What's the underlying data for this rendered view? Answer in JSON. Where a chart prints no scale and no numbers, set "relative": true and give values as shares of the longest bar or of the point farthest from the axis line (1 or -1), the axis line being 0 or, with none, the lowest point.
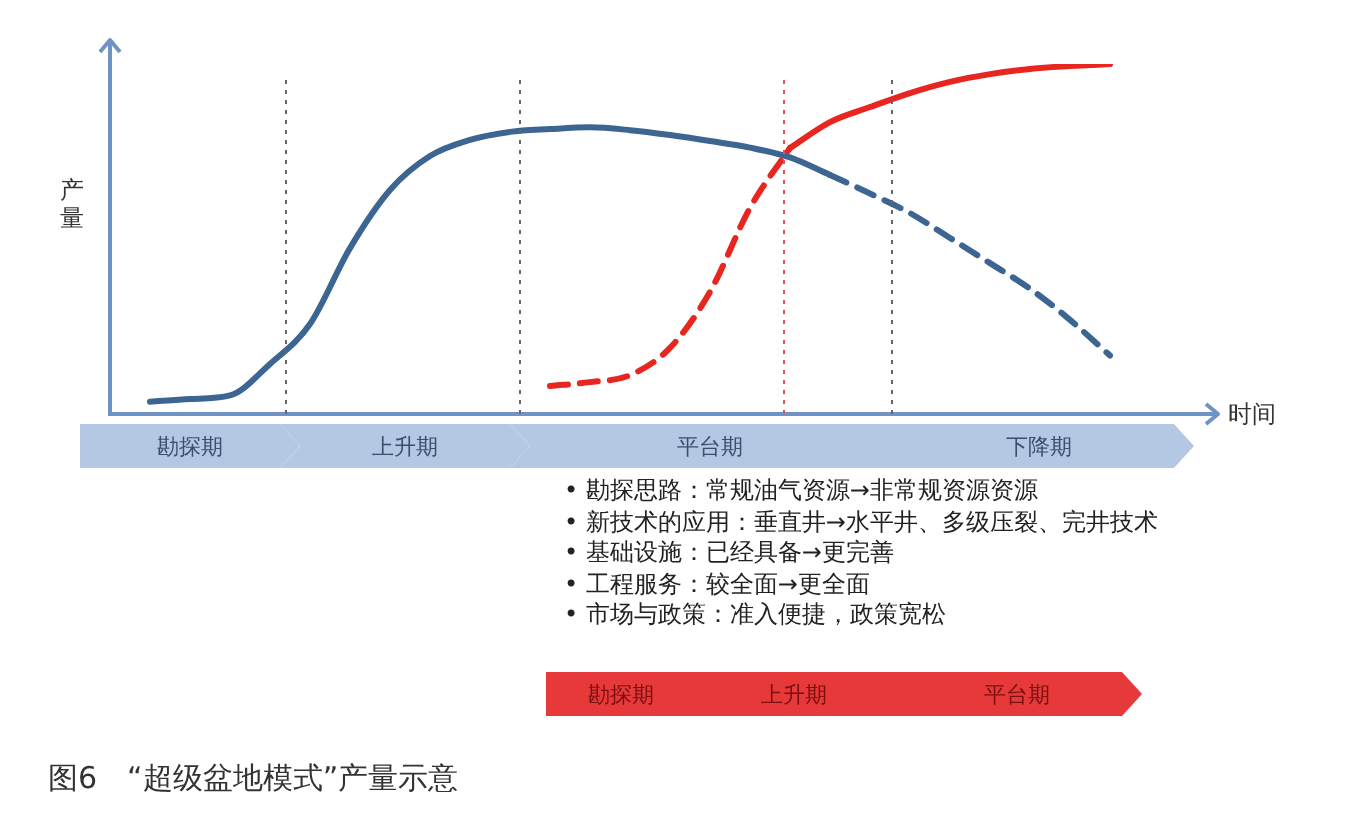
{
  "chart_data": {
    "type": "line",
    "relative": true,
    "title": "图6　“超级盆地模式”产量示意",
    "xlabel": "时间",
    "ylabel": "产量",
    "tick_labels": false,
    "legend": false,
    "marker": "none",
    "categories": [
      null,
      null,
      null,
      null,
      null,
      null,
      null,
      null,
      null,
      null,
      null,
      null,
      null,
      null,
      null,
      null,
      null,
      null,
      null,
      null,
      null,
      null,
      null,
      null,
      null
    ],
    "series": [
      {
        "color": "#3d6591",
        "line_style": "solid",
        "values": [
          0.035,
          0.043,
          0.053,
          0.143,
          0.257,
          0.474,
          0.64,
          0.737,
          0.783,
          0.806,
          0.814,
          0.819,
          0.811,
          0.797,
          0.78,
          0.761,
          0.733,
          0.683,
          null,
          null,
          null,
          null,
          null,
          null,
          null
        ]
      },
      {
        "color": "#3d6591",
        "line_style": "dashed",
        "values": [
          null,
          null,
          null,
          null,
          null,
          null,
          null,
          null,
          null,
          null,
          null,
          null,
          null,
          null,
          null,
          null,
          null,
          0.683,
          0.63,
          0.574,
          0.503,
          0.431,
          0.358,
          0.269,
          0.167
        ]
      },
      {
        "color": "#e8251e",
        "line_style": "dashed",
        "values": [
          null,
          null,
          null,
          null,
          null,
          null,
          null,
          null,
          null,
          null,
          0.08,
          0.091,
          0.111,
          0.189,
          0.349,
          0.589,
          0.76,
          null,
          null,
          null,
          null,
          null,
          null,
          null,
          null
        ]
      },
      {
        "color": "#e8251e",
        "line_style": "solid",
        "values": [
          null,
          null,
          null,
          null,
          null,
          null,
          null,
          null,
          null,
          null,
          null,
          null,
          null,
          null,
          null,
          null,
          0.76,
          0.834,
          0.877,
          0.917,
          0.949,
          0.971,
          0.986,
          0.994,
          1
        ]
      }
    ],
    "annotations": [
      "勘探期",
      "上升期",
      "平台期",
      "下降期",
      "• 勘探思路：常规油气资源→非常规资源资源",
      "• 新技术的应用：垂直井→水平井、多级压裂、完井技术",
      "• 基础设施：已经具备→更完善",
      "• 工程服务：较全面→更全面",
      "• 市场与政策：准入便捷，政策宽松",
      "勘探期",
      "上升期",
      "平台期"
    ]
  }
}
